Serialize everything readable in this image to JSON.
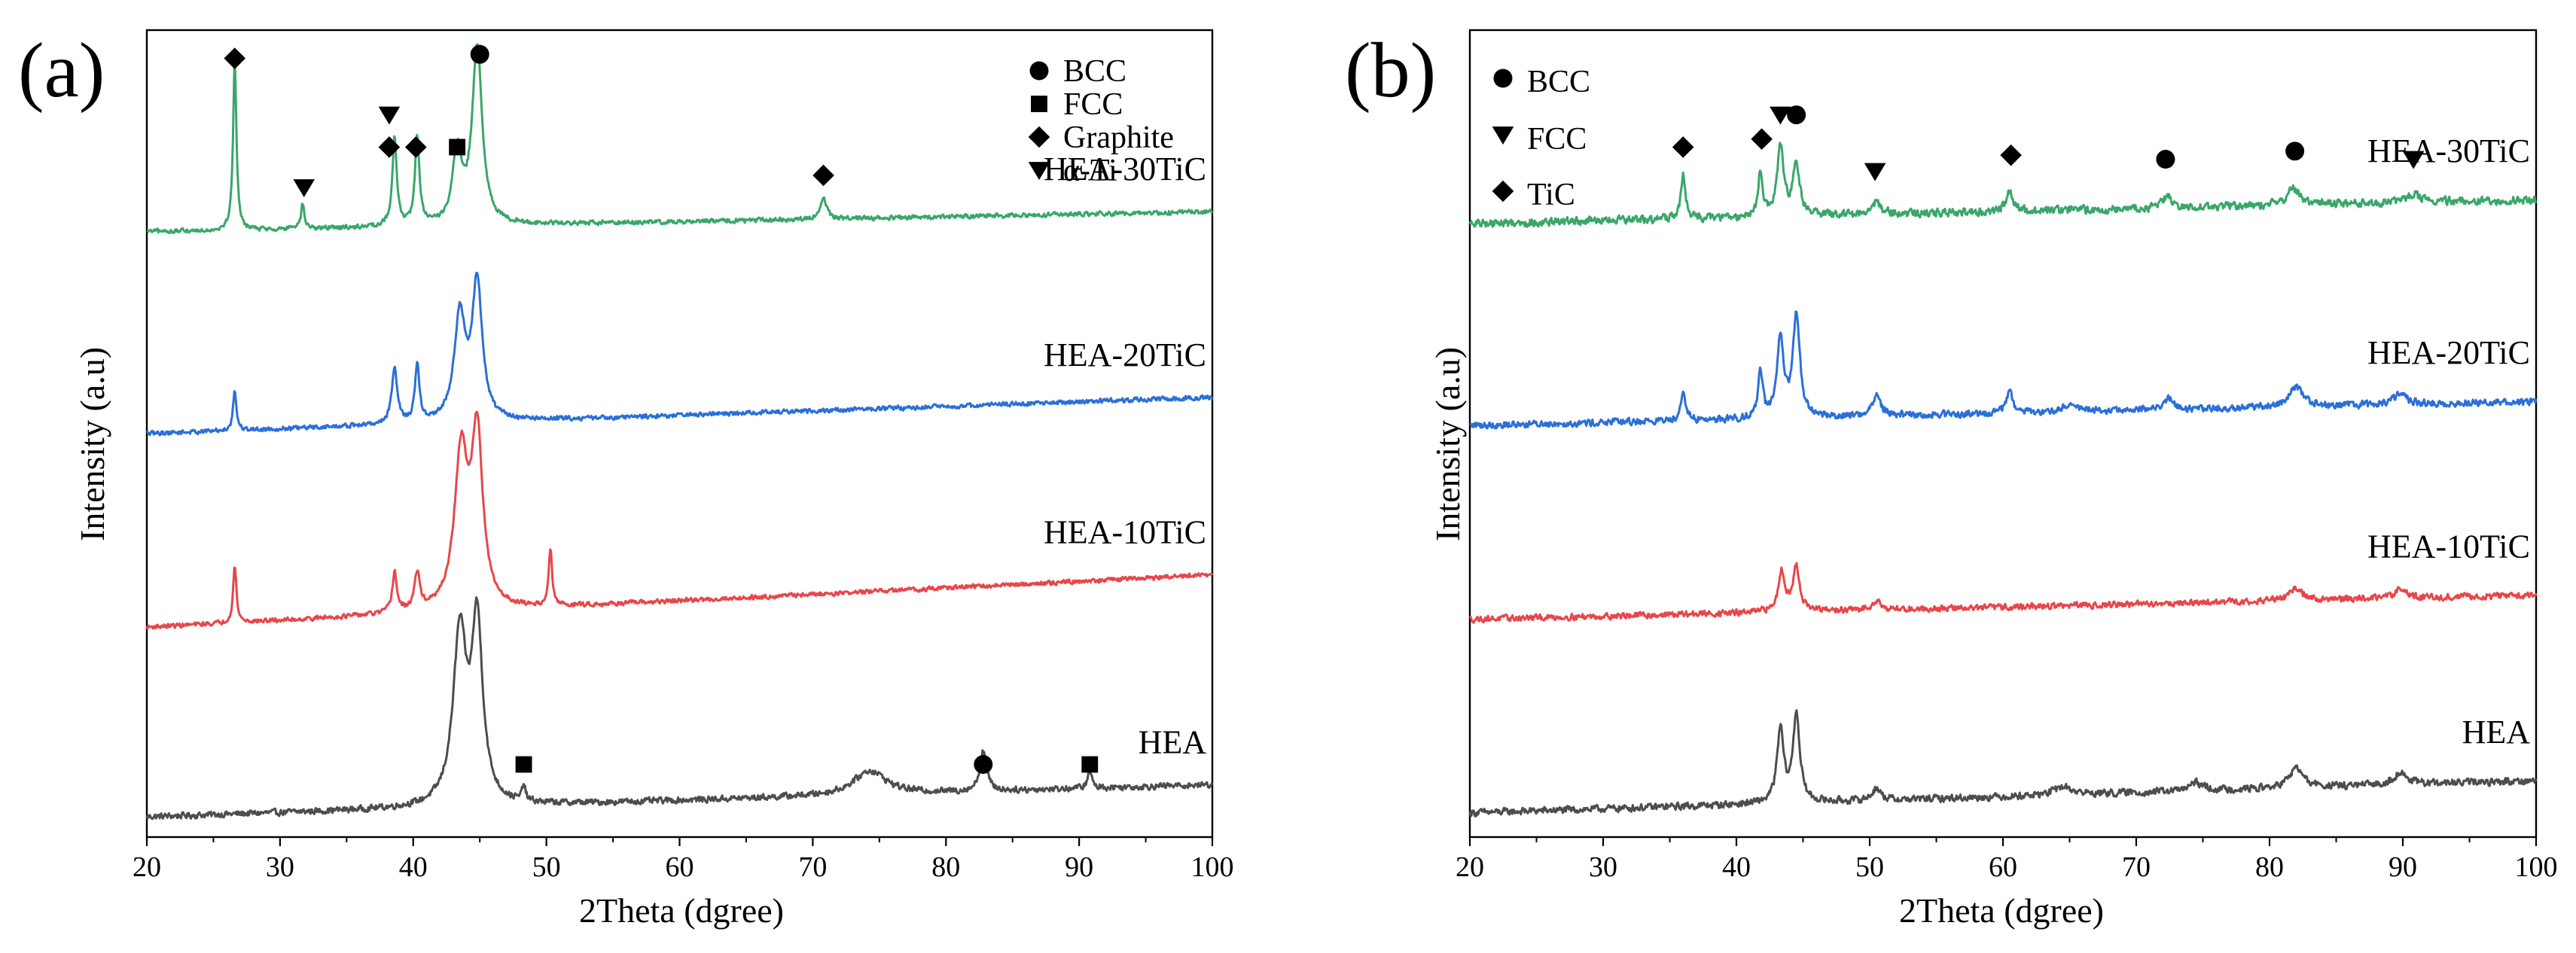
{
  "colors": {
    "HEA": "#4d4d4d",
    "HEA-10TiC": "#e8464a",
    "HEA-20TiC": "#2b6fd8",
    "HEA-30TiC": "#3aa66a",
    "axis": "#000000",
    "marker": "#000000"
  },
  "chart_data": [
    {
      "type": "line",
      "panel_label": "(a)",
      "xlabel": "2Theta (dgree)",
      "ylabel": "Intensity (a.u)",
      "xlim": [
        20,
        100
      ],
      "ylim": [
        0,
        100
      ],
      "xticks": [
        20,
        30,
        40,
        50,
        60,
        70,
        80,
        90,
        100
      ],
      "yticks_shown": false,
      "legend": {
        "position": "top-right",
        "entries": [
          {
            "marker": "circle",
            "label": "BCC"
          },
          {
            "marker": "square",
            "label": "FCC"
          },
          {
            "marker": "diamond",
            "label": "Graphite"
          },
          {
            "marker": "triangle-down",
            "label": "α-Ti"
          }
        ]
      },
      "series": [
        {
          "name": "HEA",
          "label": "HEA",
          "offset": 2,
          "baseline_start": 0.5,
          "baseline_end": 4.5,
          "noise": 0.35,
          "peaks": [
            [
              43.5,
              21,
              0.6
            ],
            [
              44.8,
              22,
              0.5
            ],
            [
              48.3,
              2,
              0.15
            ],
            [
              74.3,
              3,
              1.5
            ],
            [
              82.8,
              5,
              0.3
            ],
            [
              90.8,
              2,
              0.2
            ]
          ],
          "markers": [
            {
              "type": "square",
              "x": 48.3,
              "y": 9
            },
            {
              "type": "circle",
              "x": 82.8,
              "y": 9
            },
            {
              "type": "square",
              "x": 90.8,
              "y": 9
            }
          ]
        },
        {
          "name": "HEA-10TiC",
          "label": "HEA-10TiC",
          "offset": 26,
          "baseline_start": 0,
          "baseline_end": 6.5,
          "noise": 0.25,
          "peaks": [
            [
              26.6,
              7,
              0.15
            ],
            [
              38.6,
              5,
              0.2
            ],
            [
              40.3,
              4.5,
              0.25
            ],
            [
              43.6,
              19,
              0.6
            ],
            [
              44.8,
              21,
              0.5
            ],
            [
              50.3,
              7,
              0.15
            ]
          ],
          "markers": []
        },
        {
          "name": "HEA-20TiC",
          "label": "HEA-20TiC",
          "offset": 50,
          "baseline_start": 0,
          "baseline_end": 4.5,
          "noise": 0.25,
          "peaks": [
            [
              26.6,
              5,
              0.15
            ],
            [
              38.6,
              7,
              0.25
            ],
            [
              40.3,
              7,
              0.2
            ],
            [
              43.5,
              13,
              0.5
            ],
            [
              44.8,
              17,
              0.45
            ]
          ],
          "markers": []
        },
        {
          "name": "HEA-30TiC",
          "label": "HEA-30TiC",
          "offset": 75,
          "baseline_start": 0,
          "baseline_end": 2.5,
          "noise": 0.25,
          "peaks": [
            [
              26.6,
              21,
              0.15
            ],
            [
              31.7,
              3,
              0.15
            ],
            [
              38.6,
              11,
              0.2
            ],
            [
              40.3,
              11,
              0.2
            ],
            [
              43.3,
              9,
              0.4
            ],
            [
              44.8,
              22,
              0.45
            ],
            [
              70.8,
              2.5,
              0.3
            ]
          ],
          "markers": [
            {
              "type": "diamond",
              "x": 26.6,
              "y": 96.5
            },
            {
              "type": "triangle-down",
              "x": 31.8,
              "y": 80.5
            },
            {
              "type": "triangle-down",
              "x": 38.2,
              "y": 89.5
            },
            {
              "type": "diamond",
              "x": 38.2,
              "y": 85.5
            },
            {
              "type": "diamond",
              "x": 40.2,
              "y": 85.5
            },
            {
              "type": "square",
              "x": 43.3,
              "y": 85.5
            },
            {
              "type": "circle",
              "x": 45.0,
              "y": 97
            },
            {
              "type": "diamond",
              "x": 70.8,
              "y": 82
            }
          ]
        }
      ]
    },
    {
      "type": "line",
      "panel_label": "(b)",
      "xlabel": "2Theta (dgree)",
      "ylabel": "Intensity (a.u)",
      "xlim": [
        20,
        100
      ],
      "ylim": [
        0,
        100
      ],
      "xticks": [
        20,
        30,
        40,
        50,
        60,
        70,
        80,
        90,
        100
      ],
      "yticks_shown": false,
      "legend": {
        "position": "top-left",
        "entries": [
          {
            "marker": "circle",
            "label": "BCC"
          },
          {
            "marker": "triangle-down",
            "label": "FCC"
          },
          {
            "marker": "diamond",
            "label": "TiC"
          }
        ]
      },
      "series": [
        {
          "name": "HEA",
          "label": "HEA",
          "offset": 3,
          "baseline_start": 0,
          "baseline_end": 4,
          "noise": 0.4,
          "peaks": [
            [
              43.3,
              9,
              0.3
            ],
            [
              44.5,
              11,
              0.3
            ],
            [
              50.5,
              1.5,
              0.4
            ],
            [
              64.5,
              1,
              0.8
            ],
            [
              74.5,
              1,
              0.6
            ],
            [
              82.0,
              2.5,
              0.6
            ],
            [
              89.8,
              1.5,
              0.6
            ]
          ],
          "markers": []
        },
        {
          "name": "HEA-10TiC",
          "label": "HEA-10TiC",
          "offset": 27,
          "baseline_start": 0,
          "baseline_end": 3,
          "noise": 0.35,
          "peaks": [
            [
              43.4,
              5,
              0.3
            ],
            [
              44.5,
              5.5,
              0.3
            ],
            [
              50.5,
              1.2,
              0.4
            ],
            [
              82.0,
              1.5,
              0.6
            ],
            [
              89.8,
              1,
              0.6
            ]
          ],
          "markers": []
        },
        {
          "name": "HEA-20TiC",
          "label": "HEA-20TiC",
          "offset": 51,
          "baseline_start": 0,
          "baseline_end": 3,
          "noise": 0.4,
          "peaks": [
            [
              36.0,
              4,
              0.2
            ],
            [
              41.8,
              6,
              0.2
            ],
            [
              43.3,
              9.5,
              0.3
            ],
            [
              44.5,
              13,
              0.3
            ],
            [
              50.5,
              2.5,
              0.4
            ],
            [
              60.5,
              2.5,
              0.3
            ],
            [
              65.0,
              1,
              0.6
            ],
            [
              72.5,
              1.5,
              0.4
            ],
            [
              82.0,
              2.5,
              0.6
            ],
            [
              89.8,
              1.5,
              0.5
            ]
          ],
          "markers": []
        },
        {
          "name": "HEA-30TiC",
          "label": "HEA-30TiC",
          "offset": 76,
          "baseline_start": 0,
          "baseline_end": 3,
          "noise": 0.45,
          "peaks": [
            [
              36.0,
              5.5,
              0.2
            ],
            [
              41.8,
              5.5,
              0.2
            ],
            [
              43.3,
              8.5,
              0.3
            ],
            [
              44.5,
              6.5,
              0.3
            ],
            [
              50.5,
              1.5,
              0.4
            ],
            [
              60.5,
              2.5,
              0.3
            ],
            [
              72.3,
              1.5,
              0.4
            ],
            [
              81.8,
              2,
              0.6
            ],
            [
              90.8,
              1,
              0.6
            ]
          ],
          "markers": [
            {
              "type": "diamond",
              "x": 36.0,
              "y": 85.5
            },
            {
              "type": "diamond",
              "x": 41.9,
              "y": 86.5
            },
            {
              "type": "triangle-down",
              "x": 43.3,
              "y": 89.5
            },
            {
              "type": "circle",
              "x": 44.5,
              "y": 89.5
            },
            {
              "type": "triangle-down",
              "x": 50.4,
              "y": 82.5
            },
            {
              "type": "diamond",
              "x": 60.6,
              "y": 84.5
            },
            {
              "type": "circle",
              "x": 72.2,
              "y": 84
            },
            {
              "type": "circle",
              "x": 81.9,
              "y": 85
            },
            {
              "type": "triangle-down",
              "x": 90.8,
              "y": 84
            }
          ]
        }
      ]
    }
  ]
}
